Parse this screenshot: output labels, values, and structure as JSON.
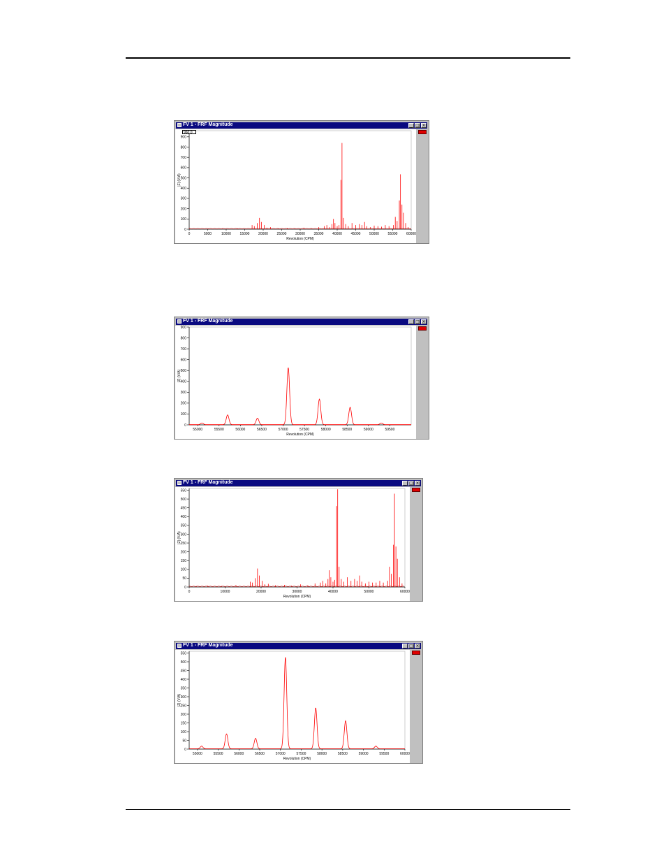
{
  "windows": [
    {
      "title": "FV 1 - FRF Magnitude",
      "readout": "960.0",
      "chart_data": {
        "type": "line",
        "xlabel": "Revolution (CPM)",
        "ylabel": "|Z| (V/A)",
        "xlim": [
          0,
          60000
        ],
        "ylim": [
          0,
          960
        ],
        "xticks": [
          0,
          5000,
          10000,
          15000,
          20000,
          25000,
          30000,
          35000,
          40000,
          45000,
          50000,
          55000,
          60000
        ],
        "xtick_labels": [
          "0",
          "5000",
          "10000",
          "15000",
          "20000",
          "25000",
          "30000",
          "35000",
          "40000",
          "45000",
          "50000",
          "55000",
          "60000"
        ],
        "yticks": [
          0,
          100,
          200,
          300,
          400,
          500,
          600,
          700,
          800,
          900
        ],
        "ytick_labels": [
          "0",
          "100",
          "200",
          "300",
          "400",
          "500",
          "600",
          "700",
          "800",
          "900"
        ],
        "series": [
          {
            "color": "#ff0000",
            "style": "spikes",
            "x": [
              2000,
              5200,
              9000,
              13000,
              17000,
              17600,
              18400,
              19000,
              19500,
              20300,
              21000,
              22000,
              24000,
              26500,
              28500,
              31000,
              33000,
              35000,
              36500,
              37200,
              38000,
              38600,
              39000,
              39400,
              40000,
              40500,
              41000,
              41300,
              41700,
              42300,
              43000,
              44000,
              45000,
              46000,
              46700,
              47400,
              48000,
              49000,
              50000,
              51000,
              52000,
              53000,
              54000,
              55200,
              55700,
              56200,
              56800,
              57100,
              57500,
              57900,
              58500,
              59200
            ],
            "y": [
              5,
              8,
              6,
              10,
              40,
              30,
              60,
              110,
              70,
              40,
              15,
              20,
              10,
              12,
              8,
              15,
              10,
              20,
              30,
              40,
              20,
              50,
              100,
              60,
              30,
              40,
              480,
              840,
              110,
              50,
              30,
              60,
              40,
              50,
              40,
              70,
              30,
              20,
              35,
              30,
              25,
              40,
              30,
              40,
              120,
              80,
              280,
              535,
              240,
              160,
              60,
              20
            ]
          }
        ]
      }
    },
    {
      "title": "FV 1 - FRF Magnitude",
      "chart_data": {
        "type": "line",
        "xlabel": "Revolution (CPM)",
        "ylabel": "|Z| (V/A)",
        "xlim": [
          54800,
          60000
        ],
        "ylim": [
          0,
          900
        ],
        "xticks": [
          55000,
          55500,
          56000,
          56500,
          57000,
          57500,
          58000,
          58500,
          59000,
          59500
        ],
        "xtick_labels": [
          "55000",
          "55500",
          "56000",
          "56500",
          "57000",
          "57500",
          "58000",
          "58500",
          "59000",
          "59500"
        ],
        "yticks": [
          0,
          100,
          200,
          300,
          400,
          500,
          600,
          700,
          800,
          900
        ],
        "ytick_labels": [
          "0",
          "100",
          "200",
          "300",
          "400",
          "500",
          "600",
          "700",
          "800",
          "900"
        ],
        "series": [
          {
            "color": "#ff0000",
            "style": "peaks",
            "x": [
              55100,
              55700,
              56400,
              57120,
              57850,
              58570,
              59300
            ],
            "y": [
              15,
              90,
              60,
              525,
              235,
              160,
              15
            ]
          }
        ]
      }
    },
    {
      "title": "FV 1 - FRF Magnitude",
      "chart_data": {
        "type": "line",
        "xlabel": "Revolution (CPM)",
        "ylabel": "|Z| (V/A)",
        "xlim": [
          0,
          60000
        ],
        "ylim": [
          0,
          560
        ],
        "xticks": [
          0,
          10000,
          20000,
          30000,
          40000,
          50000,
          60000
        ],
        "xtick_labels": [
          "0",
          "10000",
          "20000",
          "30000",
          "40000",
          "50000",
          "60000"
        ],
        "yticks": [
          0,
          50,
          100,
          150,
          200,
          250,
          300,
          350,
          400,
          450,
          500,
          550
        ],
        "ytick_labels": [
          "0",
          "50",
          "100",
          "150",
          "200",
          "250",
          "300",
          "350",
          "400",
          "450",
          "500",
          "550"
        ],
        "series": [
          {
            "color": "#ff0000",
            "style": "spikes",
            "x": [
              2000,
              5200,
              9000,
              13000,
              17000,
              17600,
              18400,
              19000,
              19500,
              20300,
              21000,
              22000,
              24000,
              26500,
              28500,
              31000,
              33000,
              35000,
              36500,
              37200,
              38000,
              38600,
              39000,
              39400,
              40000,
              40500,
              41000,
              41300,
              41700,
              42300,
              43000,
              44000,
              45000,
              46000,
              46700,
              47400,
              48000,
              49000,
              50000,
              51000,
              52000,
              53000,
              54000,
              55200,
              55700,
              56200,
              56800,
              57100,
              57500,
              57900,
              58500,
              59200
            ],
            "y": [
              5,
              8,
              6,
              10,
              30,
              25,
              50,
              105,
              65,
              35,
              15,
              18,
              10,
              12,
              8,
              15,
              10,
              20,
              25,
              35,
              20,
              45,
              95,
              55,
              30,
              40,
              460,
              555,
              115,
              45,
              30,
              55,
              35,
              45,
              35,
              65,
              30,
              20,
              30,
              25,
              25,
              35,
              25,
              35,
              115,
              75,
              240,
              530,
              230,
              160,
              55,
              20
            ]
          }
        ]
      }
    },
    {
      "title": "FV 1 - FRF Magnitude",
      "chart_data": {
        "type": "line",
        "xlabel": "Revolution (CPM)",
        "ylabel": "|Z| (V/A)",
        "xlim": [
          54800,
          60000
        ],
        "ylim": [
          0,
          560
        ],
        "xticks": [
          55000,
          55500,
          56000,
          56500,
          57000,
          57500,
          58000,
          58500,
          59000,
          59500,
          60000
        ],
        "xtick_labels": [
          "55000",
          "55500",
          "56000",
          "56500",
          "57000",
          "57500",
          "58000",
          "58500",
          "59000",
          "59500",
          "60000"
        ],
        "yticks": [
          0,
          50,
          100,
          150,
          200,
          250,
          300,
          350,
          400,
          450,
          500,
          550
        ],
        "ytick_labels": [
          "0",
          "50",
          "100",
          "150",
          "200",
          "250",
          "300",
          "350",
          "400",
          "450",
          "500",
          "550"
        ],
        "series": [
          {
            "color": "#ff0000",
            "style": "peaks",
            "x": [
              55100,
              55700,
              56400,
              57120,
              57850,
              58570,
              59300
            ],
            "y": [
              15,
              85,
              60,
              525,
              235,
              160,
              15
            ]
          }
        ]
      }
    }
  ]
}
